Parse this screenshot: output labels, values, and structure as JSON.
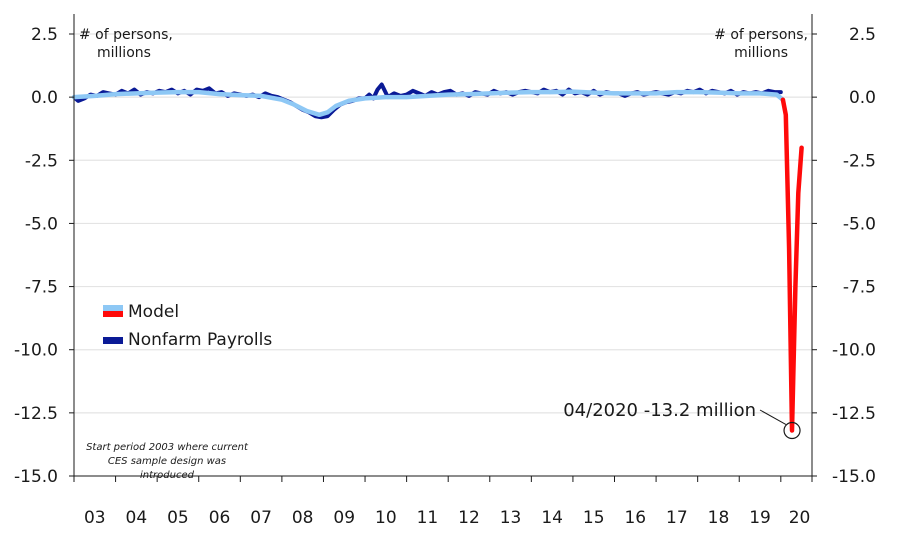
{
  "colors": {
    "model": "#8ec8f5",
    "model_tail": "#ff0a0a",
    "payrolls": "#0a1a96",
    "grid": "#e4e4e4",
    "axis": "#1a1a1a"
  },
  "chart_data": {
    "type": "line",
    "title": "",
    "y_unit_label_left": [
      "# of persons,",
      "millions"
    ],
    "y_unit_label_right": [
      "# of persons,",
      "millions"
    ],
    "ylim": [
      -15.0,
      2.5
    ],
    "y_ticks": [
      "2.5",
      "0.0",
      "-2.5",
      "-5.0",
      "-7.5",
      "-10.0",
      "-12.5",
      "-15.0"
    ],
    "y_tick_values": [
      2.5,
      0.0,
      -2.5,
      -5.0,
      -7.5,
      -10.0,
      -12.5,
      -15.0
    ],
    "xlim": [
      2003.0,
      2020.75
    ],
    "x_ticks": [
      "03",
      "04",
      "05",
      "06",
      "07",
      "08",
      "09",
      "10",
      "11",
      "12",
      "13",
      "14",
      "15",
      "16",
      "17",
      "18",
      "19",
      "20"
    ],
    "grid": "horizontal",
    "legend": {
      "placement": "middle-left",
      "entries": [
        "Model",
        "Nonfarm Payrolls"
      ]
    },
    "series": [
      {
        "name": "Model",
        "x": [
          2003.0,
          2003.5,
          2004.0,
          2004.5,
          2005.0,
          2005.5,
          2006.0,
          2006.5,
          2007.0,
          2007.5,
          2008.0,
          2008.3,
          2008.6,
          2008.9,
          2009.1,
          2009.3,
          2009.6,
          2010.0,
          2010.5,
          2011.0,
          2011.5,
          2012.0,
          2012.5,
          2013.0,
          2013.5,
          2014.0,
          2014.5,
          2015.0,
          2015.5,
          2016.0,
          2016.5,
          2017.0,
          2017.5,
          2018.0,
          2018.5,
          2019.0,
          2019.5,
          2019.9,
          2020.05
        ],
        "y": [
          0.0,
          0.05,
          0.12,
          0.15,
          0.18,
          0.2,
          0.2,
          0.12,
          0.08,
          0.05,
          -0.1,
          -0.3,
          -0.55,
          -0.7,
          -0.6,
          -0.35,
          -0.15,
          -0.05,
          0.0,
          0.0,
          0.05,
          0.1,
          0.12,
          0.15,
          0.18,
          0.2,
          0.2,
          0.22,
          0.18,
          0.15,
          0.15,
          0.15,
          0.2,
          0.2,
          0.18,
          0.15,
          0.15,
          0.1,
          -0.1
        ]
      },
      {
        "name": "Model (2020 decline)",
        "x": [
          2020.05,
          2020.12,
          2020.2,
          2020.27,
          2020.35,
          2020.42,
          2020.5
        ],
        "y": [
          -0.1,
          -0.7,
          -6.0,
          -13.2,
          -7.5,
          -3.8,
          -2.0
        ]
      },
      {
        "name": "Nonfarm Payrolls",
        "x": [
          2003.0,
          2003.1,
          2003.25,
          2003.4,
          2003.55,
          2003.7,
          2003.85,
          2004.0,
          2004.15,
          2004.3,
          2004.45,
          2004.6,
          2004.75,
          2004.9,
          2005.05,
          2005.2,
          2005.35,
          2005.5,
          2005.65,
          2005.8,
          2005.95,
          2006.1,
          2006.25,
          2006.4,
          2006.55,
          2006.7,
          2006.85,
          2007.0,
          2007.15,
          2007.3,
          2007.45,
          2007.6,
          2007.75,
          2007.9,
          2008.05,
          2008.2,
          2008.35,
          2008.5,
          2008.65,
          2008.8,
          2008.95,
          2009.1,
          2009.25,
          2009.4,
          2009.55,
          2009.7,
          2009.85,
          2010.0,
          2010.1,
          2010.2,
          2010.3,
          2010.4,
          2010.55,
          2010.7,
          2010.85,
          2011.0,
          2011.15,
          2011.3,
          2011.45,
          2011.6,
          2011.75,
          2011.9,
          2012.05,
          2012.2,
          2012.35,
          2012.5,
          2012.65,
          2012.8,
          2012.95,
          2013.1,
          2013.25,
          2013.4,
          2013.55,
          2013.7,
          2013.85,
          2014.0,
          2014.15,
          2014.3,
          2014.45,
          2014.6,
          2014.75,
          2014.9,
          2015.05,
          2015.2,
          2015.35,
          2015.5,
          2015.65,
          2015.8,
          2015.95,
          2016.1,
          2016.25,
          2016.4,
          2016.55,
          2016.7,
          2016.85,
          2017.0,
          2017.15,
          2017.3,
          2017.45,
          2017.6,
          2017.75,
          2017.9,
          2018.05,
          2018.2,
          2018.35,
          2018.5,
          2018.65,
          2018.8,
          2018.95,
          2019.1,
          2019.25,
          2019.4,
          2019.55,
          2019.7,
          2019.85,
          2020.0
        ],
        "y": [
          0.0,
          -0.15,
          -0.05,
          0.1,
          0.05,
          0.2,
          0.15,
          0.1,
          0.25,
          0.15,
          0.3,
          0.1,
          0.2,
          0.15,
          0.25,
          0.2,
          0.3,
          0.15,
          0.25,
          0.1,
          0.3,
          0.25,
          0.35,
          0.15,
          0.2,
          0.05,
          0.15,
          0.1,
          0.05,
          0.1,
          0.0,
          0.15,
          0.05,
          0.0,
          -0.1,
          -0.2,
          -0.35,
          -0.5,
          -0.6,
          -0.75,
          -0.8,
          -0.75,
          -0.5,
          -0.3,
          -0.2,
          -0.15,
          -0.05,
          -0.05,
          0.1,
          -0.05,
          0.3,
          0.5,
          0.0,
          0.15,
          0.05,
          0.1,
          0.25,
          0.15,
          0.05,
          0.2,
          0.1,
          0.2,
          0.25,
          0.1,
          0.15,
          0.05,
          0.2,
          0.15,
          0.1,
          0.25,
          0.15,
          0.2,
          0.1,
          0.2,
          0.25,
          0.2,
          0.15,
          0.3,
          0.2,
          0.25,
          0.1,
          0.3,
          0.15,
          0.2,
          0.1,
          0.25,
          0.1,
          0.2,
          0.15,
          0.15,
          0.05,
          0.15,
          0.2,
          0.1,
          0.15,
          0.2,
          0.15,
          0.1,
          0.2,
          0.15,
          0.25,
          0.2,
          0.3,
          0.15,
          0.25,
          0.2,
          0.15,
          0.25,
          0.1,
          0.2,
          0.15,
          0.2,
          0.15,
          0.25,
          0.2,
          0.2
        ]
      }
    ],
    "annotations": [
      {
        "text": "04/2020 -13.2 million",
        "x": 2020.27,
        "y": -13.2
      }
    ],
    "note": [
      "Start period 2003 where current",
      "CES sample design was",
      "introduced"
    ]
  }
}
